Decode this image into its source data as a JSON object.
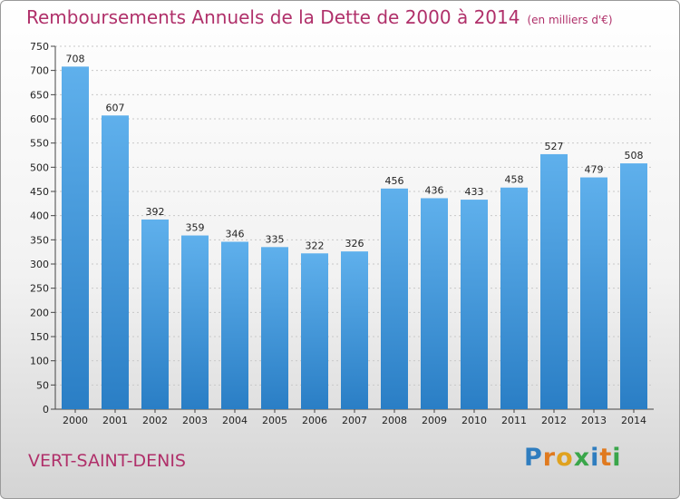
{
  "header": {
    "title": "Remboursements Annuels de la Dette de 2000 à 2014",
    "unit": "(en milliers d'€)"
  },
  "footer": {
    "commune": "VERT-SAINT-DENIS",
    "logo": "Proxiti"
  },
  "colors": {
    "bar_top": "#5fb0ec",
    "bar_bottom": "#2a7ec5",
    "title": "#b0306a"
  },
  "chart_data": {
    "type": "bar",
    "title": "Remboursements Annuels de la Dette de 2000 à 2014",
    "ylabel": "(en milliers d'€)",
    "xlabel": "",
    "categories": [
      "2000",
      "2001",
      "2002",
      "2003",
      "2004",
      "2005",
      "2006",
      "2007",
      "2008",
      "2009",
      "2010",
      "2011",
      "2012",
      "2013",
      "2014"
    ],
    "values": [
      708,
      607,
      392,
      359,
      346,
      335,
      322,
      326,
      456,
      436,
      433,
      458,
      527,
      479,
      508
    ],
    "ylim": [
      0,
      750
    ],
    "yticks": [
      0,
      50,
      100,
      150,
      200,
      250,
      300,
      350,
      400,
      450,
      500,
      550,
      600,
      650,
      700,
      750
    ],
    "grid": true,
    "legend": "none"
  }
}
